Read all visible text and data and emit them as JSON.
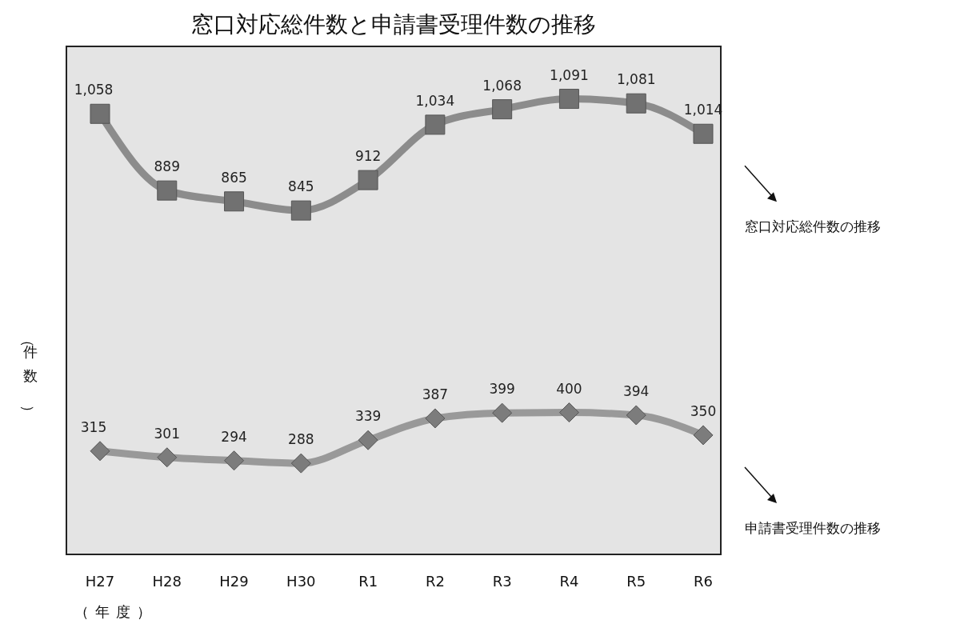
{
  "chart_data": {
    "type": "line",
    "title": "窓口対応総件数と申請書受理件数の推移",
    "xlabel": "（年度）",
    "ylabel": "（件数）",
    "categories": [
      "H27",
      "H28",
      "H29",
      "H30",
      "R1",
      "R2",
      "R3",
      "R4",
      "R5",
      "R6"
    ],
    "series": [
      {
        "name": "窓口対応総件数の推移",
        "color": "#8c8c8c",
        "marker": "square",
        "values": [
          1058,
          889,
          865,
          845,
          912,
          1034,
          1068,
          1091,
          1081,
          1014
        ],
        "value_labels": [
          "1,058",
          "889",
          "865",
          "845",
          "912",
          "1,034",
          "1,068",
          "1,091",
          "1,081",
          "1,014"
        ]
      },
      {
        "name": "申請書受理件数の推移",
        "color": "#999999",
        "marker": "diamond",
        "values": [
          315,
          301,
          294,
          288,
          339,
          387,
          399,
          400,
          394,
          350
        ],
        "value_labels": [
          "315",
          "301",
          "294",
          "288",
          "339",
          "387",
          "399",
          "400",
          "394",
          "350"
        ]
      }
    ],
    "legend": "right"
  }
}
